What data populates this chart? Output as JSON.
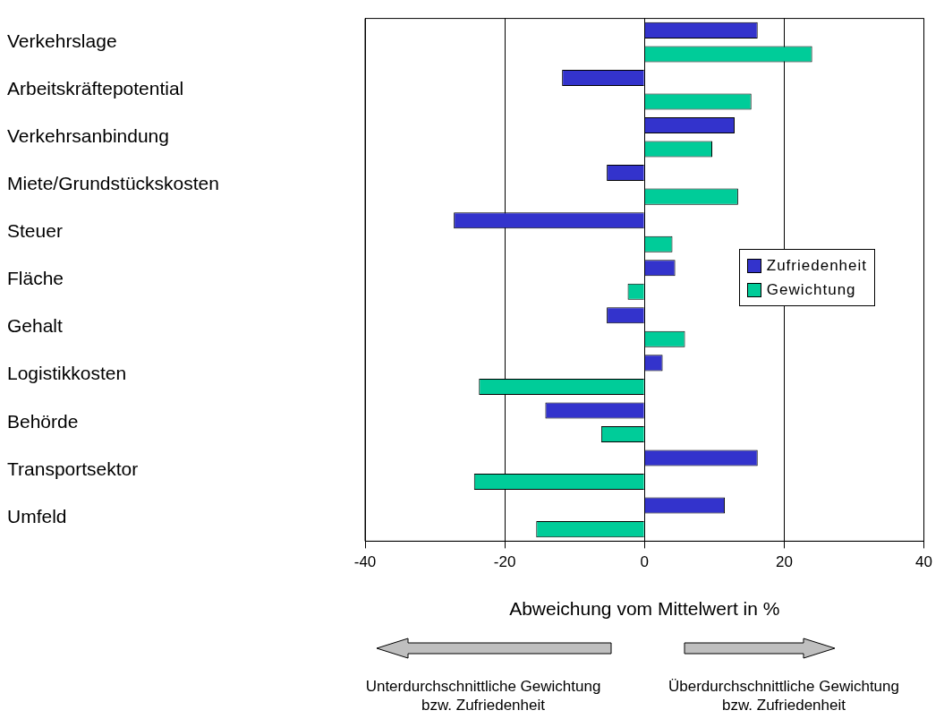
{
  "chart_data": {
    "type": "bar",
    "orientation": "horizontal",
    "xlabel": "Abweichung vom Mittelwert in %",
    "categories": [
      "Verkehrslage",
      "Arbeitskräftepotential",
      "Verkehrsanbindung",
      "Miete/Grundstückskosten",
      "Steuer",
      "Fläche",
      "Gehalt",
      "Logistikkosten",
      "Behörde",
      "Transportsektor",
      "Umfeld"
    ],
    "series": [
      {
        "name": "Zufriedenheit",
        "color": "#3333cc",
        "values": [
          16.2,
          -11.8,
          12.9,
          -5.4,
          -27.3,
          4.4,
          -5.4,
          2.6,
          -14.2,
          16.2,
          11.5
        ]
      },
      {
        "name": "Gewichtung",
        "color": "#00cc99",
        "values": [
          24,
          15.3,
          9.7,
          13.4,
          4,
          -2.4,
          5.8,
          -23.7,
          -6.2,
          -24.4,
          -15.5
        ]
      }
    ],
    "xlim": [
      -40,
      40
    ],
    "xticks": [
      -40,
      -20,
      0,
      20,
      40
    ],
    "grid": "x",
    "legend": "right",
    "annotations": [
      "Unterdurchschnittliche Gewichtung bzw. Zufriedenheit",
      "Überdurchschnittliche Gewichtung bzw. Zufriedenheit"
    ]
  }
}
